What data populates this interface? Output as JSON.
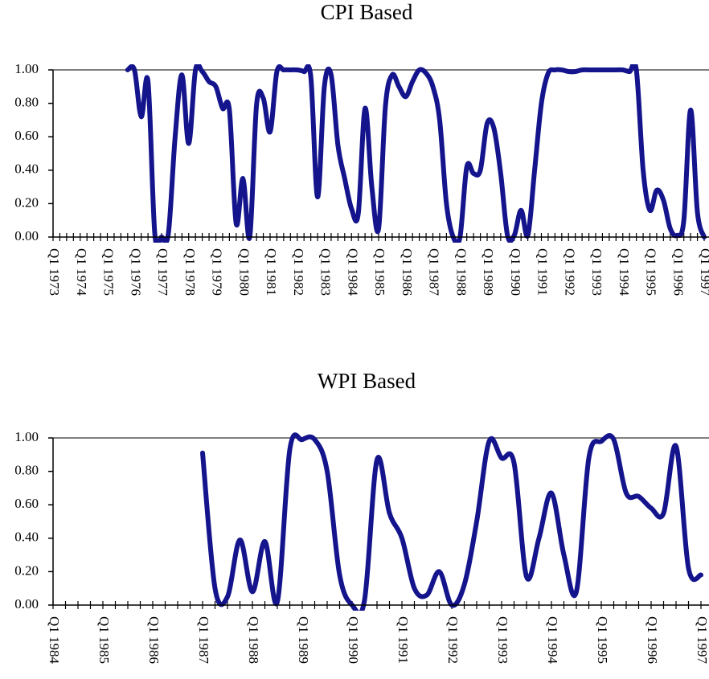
{
  "chart_data": [
    {
      "type": "line",
      "title": "CPI Based",
      "color": "#14148c",
      "categories": [
        "Q1 1973",
        null,
        null,
        null,
        "Q1 1974",
        null,
        null,
        null,
        "Q1 1975",
        null,
        null,
        null,
        "Q1 1976",
        null,
        null,
        null,
        "Q1 1977",
        null,
        null,
        null,
        "Q1 1978",
        null,
        null,
        null,
        "Q1 1979",
        null,
        null,
        null,
        "Q1 1980",
        null,
        null,
        null,
        "Q1 1981",
        null,
        null,
        null,
        "Q1 1982",
        null,
        null,
        null,
        "Q1 1983",
        null,
        null,
        null,
        "Q1 1984",
        null,
        null,
        null,
        "Q1 1985",
        null,
        null,
        null,
        "Q1 1986",
        null,
        null,
        null,
        "Q1 1987",
        null,
        null,
        null,
        "Q1 1988",
        null,
        null,
        null,
        "Q1 1989",
        null,
        null,
        null,
        "Q1 1990",
        null,
        null,
        null,
        "Q1 1991",
        null,
        null,
        null,
        "Q1 1992",
        null,
        null,
        null,
        "Q1 1993",
        null,
        null,
        null,
        "Q1 1994",
        null,
        null,
        null,
        "Q1 1995",
        null,
        null,
        null,
        "Q1 1996",
        null,
        null,
        null,
        "Q1 1997"
      ],
      "values": [
        null,
        null,
        null,
        null,
        null,
        null,
        null,
        null,
        null,
        null,
        null,
        1.0,
        1.0,
        0.72,
        0.93,
        0.02,
        0.0,
        0.02,
        0.6,
        0.97,
        0.56,
        1.0,
        0.99,
        0.93,
        0.9,
        0.77,
        0.76,
        0.08,
        0.35,
        0.0,
        0.79,
        0.83,
        0.63,
        0.99,
        1.0,
        1.0,
        1.0,
        0.99,
        0.96,
        0.24,
        0.9,
        0.97,
        0.55,
        0.35,
        0.17,
        0.14,
        0.77,
        0.3,
        0.05,
        0.78,
        0.97,
        0.9,
        0.84,
        0.93,
        1.0,
        0.98,
        0.9,
        0.7,
        0.2,
        0.0,
        0.0,
        0.42,
        0.38,
        0.4,
        0.68,
        0.65,
        0.38,
        0.01,
        0.01,
        0.16,
        0.01,
        0.4,
        0.8,
        0.98,
        1.0,
        1.0,
        0.99,
        0.99,
        1.0,
        1.0,
        1.0,
        1.0,
        1.0,
        1.0,
        1.0,
        0.99,
        1.0,
        0.4,
        0.16,
        0.28,
        0.22,
        0.05,
        0.01,
        0.1,
        0.76,
        0.15,
        0.0
      ],
      "ylim": [
        0,
        1
      ],
      "yticks": [
        {
          "value": 0,
          "label": "0.00"
        },
        {
          "value": 0.2,
          "label": "0.20"
        },
        {
          "value": 0.4,
          "label": "0.40"
        },
        {
          "value": 0.6,
          "label": "0.60"
        },
        {
          "value": 0.8,
          "label": "0.80"
        },
        {
          "value": 1,
          "label": "1.00"
        }
      ]
    },
    {
      "type": "line",
      "title": "WPI Based",
      "color": "#14148c",
      "categories": [
        "Q1 1984",
        null,
        null,
        null,
        "Q1 1985",
        null,
        null,
        null,
        "Q1 1986",
        null,
        null,
        null,
        "Q1 1987",
        null,
        null,
        null,
        "Q1 1988",
        null,
        null,
        null,
        "Q1 1989",
        null,
        null,
        null,
        "Q1 1990",
        null,
        null,
        null,
        "Q1 1991",
        null,
        null,
        null,
        "Q1 1992",
        null,
        null,
        null,
        "Q1 1993",
        null,
        null,
        null,
        "Q1 1994",
        null,
        null,
        null,
        "Q1 1995",
        null,
        null,
        null,
        "Q1 1996",
        null,
        null,
        null,
        "Q1 1997"
      ],
      "values": [
        null,
        null,
        null,
        null,
        null,
        null,
        null,
        null,
        null,
        null,
        null,
        null,
        0.91,
        0.1,
        0.05,
        0.39,
        0.08,
        0.38,
        0.02,
        0.93,
        0.99,
        0.99,
        0.8,
        0.18,
        0.0,
        0.03,
        0.87,
        0.55,
        0.4,
        0.1,
        0.06,
        0.2,
        0.0,
        0.12,
        0.5,
        0.98,
        0.88,
        0.85,
        0.17,
        0.4,
        0.67,
        0.3,
        0.08,
        0.88,
        0.98,
        0.99,
        0.67,
        0.65,
        0.58,
        0.55,
        0.95,
        0.22,
        0.18
      ],
      "ylim": [
        0,
        1
      ],
      "yticks": [
        {
          "value": 0,
          "label": "0.00"
        },
        {
          "value": 0.2,
          "label": "0.20"
        },
        {
          "value": 0.4,
          "label": "0.40"
        },
        {
          "value": 0.6,
          "label": "0.60"
        },
        {
          "value": 0.8,
          "label": "0.80"
        },
        {
          "value": 1,
          "label": "1.00"
        }
      ]
    }
  ]
}
